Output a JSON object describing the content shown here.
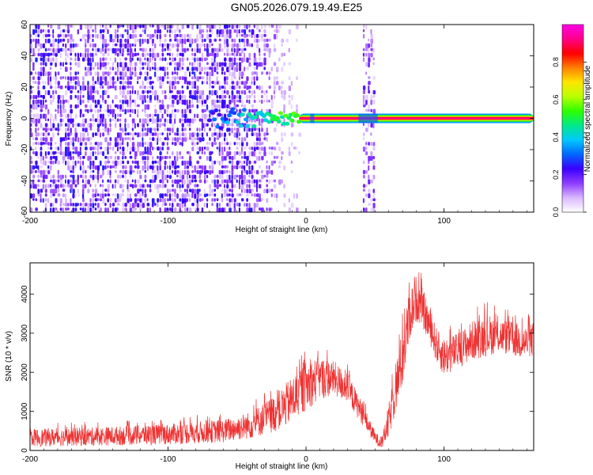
{
  "title": "GN05.2026.079.19.49.E25",
  "chart_data": [
    {
      "type": "heatmap",
      "title": "",
      "xlabel": "Height of straight line (km)",
      "ylabel": "Frequency (Hz)",
      "xlim": [
        -200,
        165
      ],
      "ylim": [
        -60,
        60
      ],
      "xticks": [
        -200,
        -100,
        0,
        100
      ],
      "yticks": [
        -60,
        -40,
        -20,
        0,
        20,
        40,
        60
      ],
      "colorbar": {
        "label": "Normalized spectral amplitude",
        "range": [
          0,
          1
        ],
        "ticks": [
          0.0,
          0.2,
          0.4,
          0.6,
          0.8
        ],
        "colors": [
          "#ffffff",
          "#d9b8ff",
          "#8f3cff",
          "#3a00ff",
          "#0066ff",
          "#00c8ff",
          "#00e88a",
          "#2cff00",
          "#b8ff00",
          "#ffe600",
          "#ff8000",
          "#ff0000",
          "#ff0088",
          "#ff00e6"
        ]
      },
      "features": {
        "noise_region_x": [
          -200,
          -5
        ],
        "signal_band_x": [
          -70,
          165
        ],
        "signal_frequency_hz": 0,
        "vertical_noise_band_x": [
          40,
          50
        ]
      }
    },
    {
      "type": "line",
      "title": "",
      "xlabel": "Height of straight line (km)",
      "ylabel": "SNR (10 * v/v)",
      "xlim": [
        -200,
        165
      ],
      "ylim": [
        0,
        4800
      ],
      "xticks": [
        -200,
        -100,
        0,
        100
      ],
      "yticks": [
        0,
        1000,
        2000,
        3000,
        4000
      ],
      "line_color": "#ee3333",
      "envelope": {
        "x": [
          -200,
          -150,
          -100,
          -60,
          -40,
          -20,
          -10,
          0,
          10,
          20,
          30,
          40,
          50,
          55,
          60,
          70,
          75,
          80,
          85,
          90,
          95,
          100,
          110,
          120,
          130,
          140,
          150,
          160,
          165
        ],
        "lower": [
          100,
          120,
          150,
          200,
          300,
          500,
          700,
          1000,
          1300,
          1400,
          1200,
          700,
          150,
          50,
          300,
          1600,
          2800,
          3300,
          3100,
          2700,
          2200,
          1900,
          2100,
          2300,
          2400,
          2500,
          2400,
          2300,
          2400
        ],
        "upper": [
          550,
          600,
          680,
          800,
          1000,
          1500,
          1900,
          2300,
          2400,
          2300,
          2000,
          1300,
          500,
          300,
          1200,
          3200,
          4100,
          4500,
          4100,
          3600,
          3100,
          2900,
          3000,
          3300,
          3500,
          3400,
          3300,
          3200,
          3300
        ]
      }
    }
  ]
}
